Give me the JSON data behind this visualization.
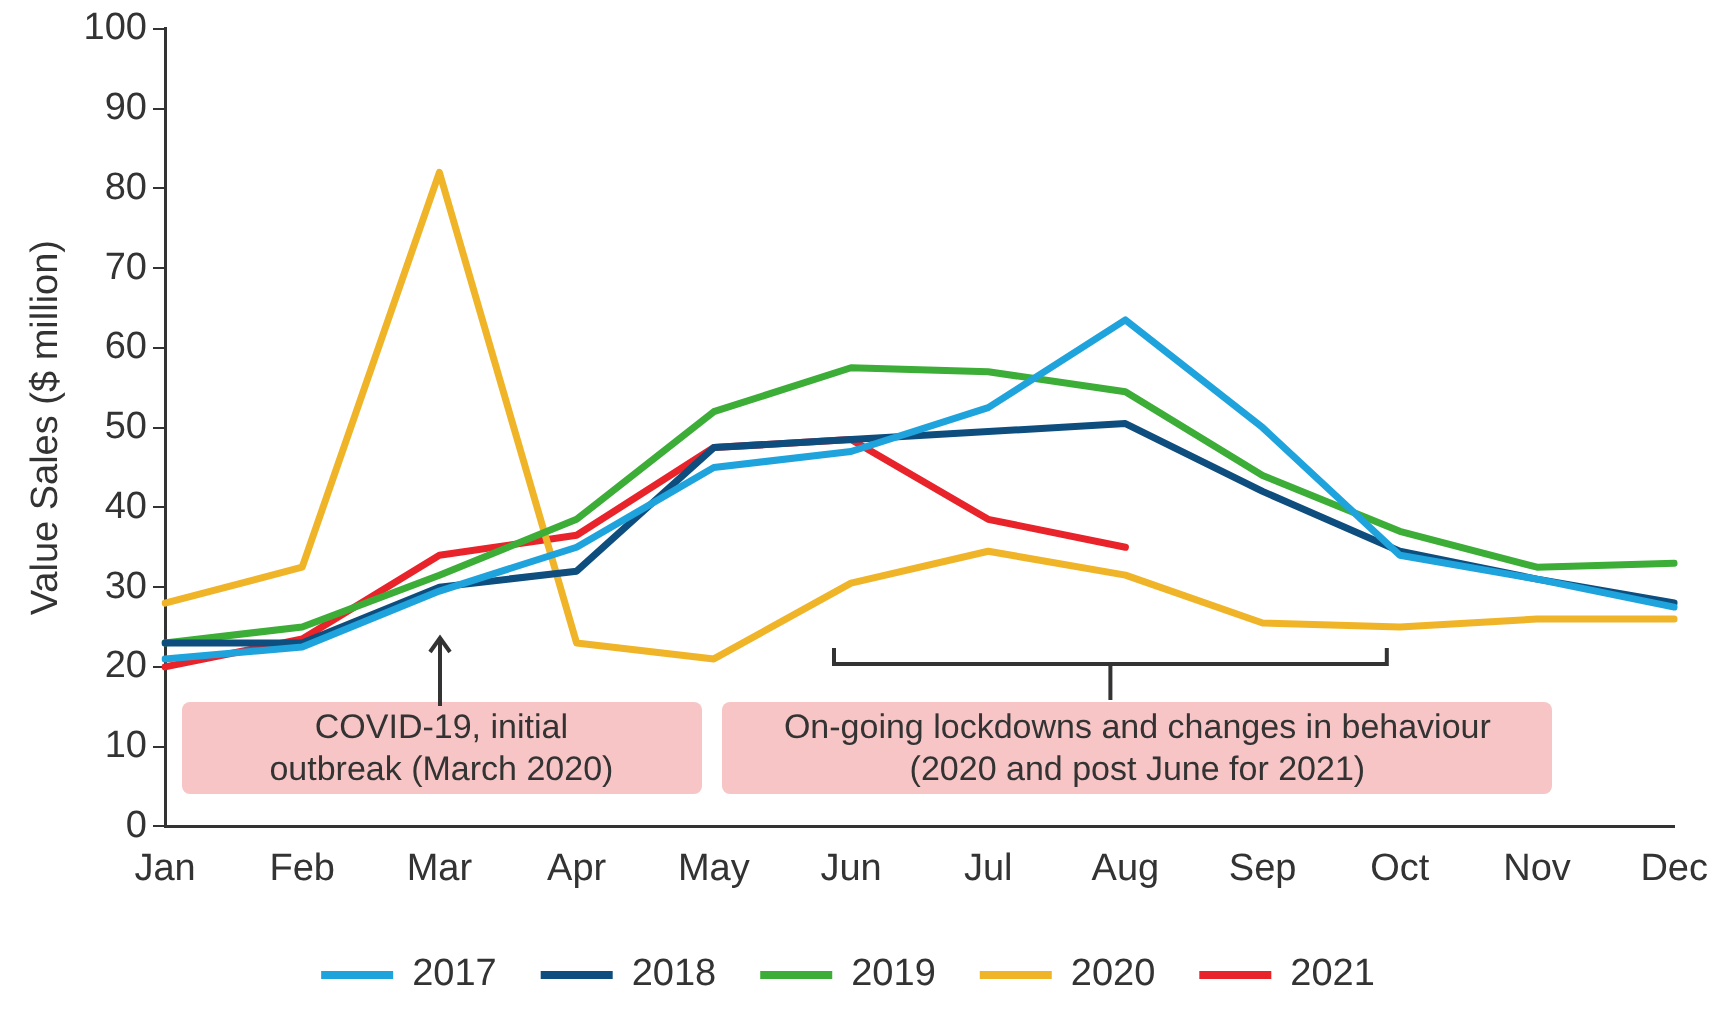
{
  "chart_data": {
    "type": "line",
    "ylabel": "Value Sales ($ million)",
    "categories": [
      "Jan",
      "Feb",
      "Mar",
      "Apr",
      "May",
      "Jun",
      "Jul",
      "Aug",
      "Sep",
      "Oct",
      "Nov",
      "Dec"
    ],
    "series": [
      {
        "name": "2017",
        "color": "#1fa3dc",
        "values": [
          21,
          22.5,
          29.5,
          35,
          45,
          47,
          52.5,
          63.5,
          50,
          34,
          31,
          27.5
        ]
      },
      {
        "name": "2018",
        "color": "#0d4e7e",
        "values": [
          23,
          23,
          30,
          32,
          47.5,
          48.5,
          49.5,
          50.5,
          42,
          34.5,
          31,
          28
        ]
      },
      {
        "name": "2019",
        "color": "#3cad36",
        "values": [
          23,
          25,
          31.5,
          38.5,
          52,
          57.5,
          57,
          54.5,
          44,
          37,
          32.5,
          33
        ]
      },
      {
        "name": "2020",
        "color": "#f0b428",
        "values": [
          28,
          32.5,
          82,
          23,
          21,
          30.5,
          34.5,
          31.5,
          25.5,
          25,
          26,
          26
        ]
      },
      {
        "name": "2021",
        "color": "#e8232a",
        "values": [
          20,
          23.5,
          34,
          36.5,
          47.5,
          48.5,
          38.5,
          35,
          null,
          null,
          null,
          null
        ]
      }
    ],
    "ylim": [
      0,
      100
    ],
    "yticks": [
      0,
      10,
      20,
      30,
      40,
      50,
      60,
      70,
      80,
      90,
      100
    ],
    "grid": false,
    "legend": "bottom",
    "marker": "none",
    "line_style": "solid",
    "annotations": [
      "COVID-19, initial outbreak (March 2020)",
      "On-going lockdowns and  changes in behaviour (2020 and post June for 2021)"
    ]
  }
}
